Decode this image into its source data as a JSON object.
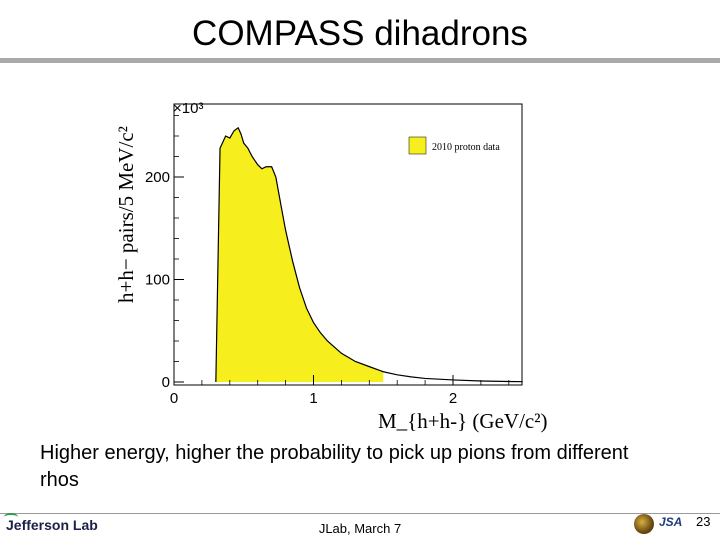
{
  "slide": {
    "title": "COMPASS dihadrons",
    "body": "Higher energy, higher the probability to pick up pions from different rhos"
  },
  "footer": {
    "logo_text": "Jefferson Lab",
    "center_text": "JLab,  March 7",
    "right_logo_text": "JSA",
    "page_number": "23"
  },
  "chart_data": {
    "type": "area",
    "legend": {
      "label": "2010 proton data",
      "position": "top-right",
      "color": "#f7ee1d"
    },
    "xlabel": "M_{h+h-}  (GeV/c²)",
    "ylabel": "h+h− pairs/5 MeV/c²",
    "y_multiplier": "×10³",
    "xlim": [
      0,
      2.5
    ],
    "ylim": [
      0,
      270
    ],
    "x_ticks": [
      0,
      1,
      2
    ],
    "y_ticks": [
      0,
      100,
      200
    ],
    "fill_range": [
      0.3,
      1.5
    ],
    "fill_color": "#f7ee1d",
    "grid": false,
    "x": [
      0.3,
      0.33,
      0.37,
      0.4,
      0.43,
      0.46,
      0.48,
      0.5,
      0.53,
      0.56,
      0.6,
      0.63,
      0.66,
      0.7,
      0.73,
      0.77,
      0.8,
      0.85,
      0.9,
      0.95,
      1.0,
      1.05,
      1.1,
      1.2,
      1.3,
      1.4,
      1.5,
      1.6,
      1.7,
      1.8,
      2.0,
      2.2,
      2.4,
      2.5
    ],
    "y": [
      0,
      228,
      240,
      238,
      245,
      248,
      242,
      233,
      228,
      220,
      212,
      208,
      210,
      210,
      200,
      170,
      148,
      118,
      92,
      72,
      58,
      48,
      40,
      28,
      20,
      15,
      10,
      7,
      5,
      3.5,
      2,
      1,
      0.5,
      0.3
    ]
  }
}
